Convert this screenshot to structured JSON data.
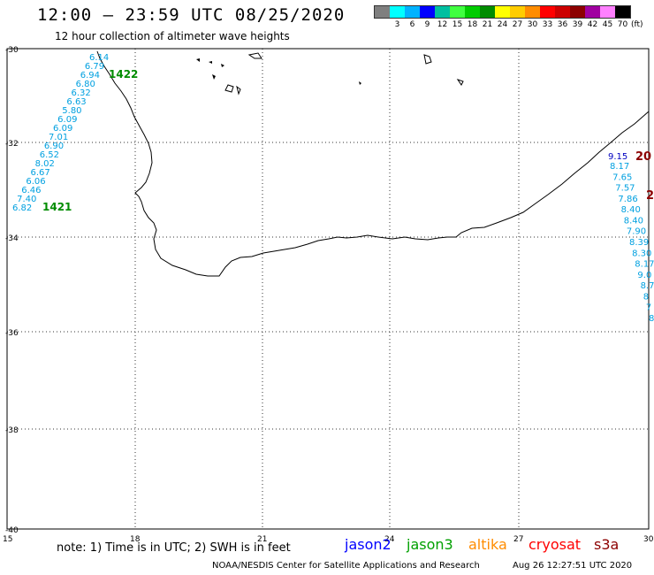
{
  "header": {
    "title": "12:00 – 23:59 UTC 08/25/2020",
    "subtitle": "12 hour collection of altimeter wave heights"
  },
  "legend": {
    "unit": "(ft)",
    "bins": [
      {
        "label": "",
        "color": "#7f7f7f"
      },
      {
        "label": "3",
        "color": "#00ffff"
      },
      {
        "label": "6",
        "color": "#00b2ff"
      },
      {
        "label": "9",
        "color": "#0000ff"
      },
      {
        "label": "12",
        "color": "#00bfa0"
      },
      {
        "label": "15",
        "color": "#40ff40"
      },
      {
        "label": "18",
        "color": "#00cc00"
      },
      {
        "label": "21",
        "color": "#008c00"
      },
      {
        "label": "24",
        "color": "#ffff00"
      },
      {
        "label": "27",
        "color": "#ffcc00"
      },
      {
        "label": "30",
        "color": "#ff8c00"
      },
      {
        "label": "33",
        "color": "#ff0000"
      },
      {
        "label": "36",
        "color": "#cc0000"
      },
      {
        "label": "39",
        "color": "#8c0000"
      },
      {
        "label": "42",
        "color": "#a000a0"
      },
      {
        "label": "45",
        "color": "#ff80ff"
      },
      {
        "label": "70",
        "color": "#000000"
      }
    ]
  },
  "axes": {
    "lat_labels": [
      "-30",
      "-32",
      "-34",
      "-36",
      "-38",
      "-40"
    ],
    "lon_labels": [
      "15",
      "18",
      "21",
      "24",
      "27",
      "30"
    ]
  },
  "tracks": {
    "west": {
      "time_top": "1422",
      "time_bottom": "1421",
      "color": "#00a0e0",
      "time_color": "#008c00",
      "values": [
        "6.14",
        "6.79",
        "6.94",
        "6.80",
        "6.32",
        "6.63",
        "5.80",
        "6.09",
        "6.09",
        "7.01",
        "6.90",
        "6.52",
        "8.02",
        "6.67",
        "6.06",
        "6.46",
        "7.40",
        "6.82"
      ]
    },
    "east": {
      "time_top": "20",
      "time_mid": "2",
      "top_value": "9.15",
      "top_color": "#0000c0",
      "time_color": "#8c0000",
      "color": "#00a0e0",
      "values": [
        "8.17",
        "7.65",
        "7.57",
        "7.86",
        "8.40",
        "8.40",
        "7.90",
        "8.39",
        "8.30",
        "8.17",
        "9.0",
        "8.7",
        "8",
        "7",
        "8"
      ]
    }
  },
  "note": "note: 1) Time is in UTC; 2) SWH is in feet",
  "satellites": [
    {
      "name": "jason2",
      "color": "#0000ff"
    },
    {
      "name": "jason3",
      "color": "#00a000"
    },
    {
      "name": "altika",
      "color": "#ff8c00"
    },
    {
      "name": "cryosat",
      "color": "#ff0000"
    },
    {
      "name": "s3a",
      "color": "#8c0000"
    }
  ],
  "footer": {
    "credit": "NOAA/NESDIS Center for Satellite Applications and Research",
    "timestamp": "Aug 26 12:27:51 UTC 2020"
  }
}
